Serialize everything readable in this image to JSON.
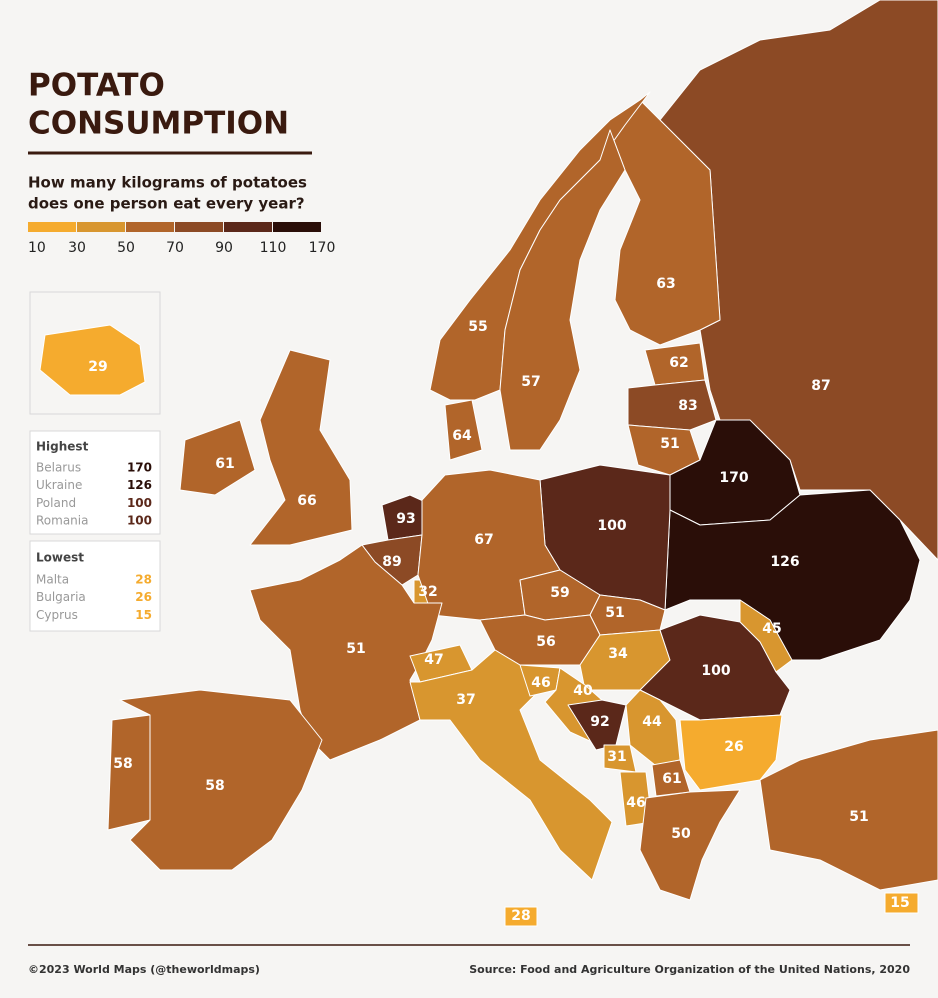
{
  "title": [
    "POTATO",
    "CONSUMPTION"
  ],
  "subtitle": [
    "How many kilograms of potatoes",
    "does one person eat every year?"
  ],
  "legend": {
    "breaks": [
      10,
      30,
      50,
      70,
      90,
      110,
      170
    ],
    "colors": [
      "#f5ab2e",
      "#d8962f",
      "#b1652a",
      "#8c4a25",
      "#5b281a",
      "#2a0e08"
    ]
  },
  "highest": {
    "heading": "Highest",
    "rows": [
      [
        "Belarus",
        170
      ],
      [
        "Ukraine",
        126
      ],
      [
        "Poland",
        100
      ],
      [
        "Romania",
        100
      ]
    ]
  },
  "lowest": {
    "heading": "Lowest",
    "rows": [
      [
        "Malta",
        28
      ],
      [
        "Bulgaria",
        26
      ],
      [
        "Cyprus",
        15
      ]
    ]
  },
  "regions": [
    87,
    63,
    55,
    57,
    62,
    83,
    51,
    170,
    126,
    100,
    64,
    61,
    66,
    93,
    89,
    32,
    67,
    59,
    51,
    56,
    34,
    45,
    100,
    51,
    47,
    37,
    46,
    40,
    92,
    44,
    31,
    26,
    61,
    46,
    50,
    58,
    58,
    51,
    28,
    15,
    29
  ],
  "footer": {
    "credit": "©2023 World Maps (@theworldmaps)",
    "source": "Source: Food and Agriculture Organization of the United Nations, 2020"
  }
}
